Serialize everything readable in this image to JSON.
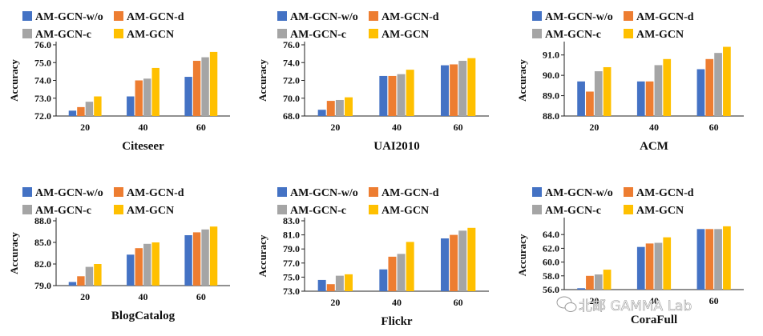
{
  "chart_data": [
    {
      "type": "bar",
      "title": "Citeseer",
      "ylabel": "Accuracy",
      "categories": [
        "20",
        "40",
        "60"
      ],
      "ylim": [
        72.0,
        76.0
      ],
      "yticks": [
        "72.0",
        "73.0",
        "74.0",
        "75.0",
        "76.0"
      ],
      "series": [
        {
          "name": "AM-GCN-w/o",
          "color": "#4472C4",
          "values": [
            72.3,
            73.1,
            74.2
          ]
        },
        {
          "name": "AM-GCN-d",
          "color": "#ED7D31",
          "values": [
            72.5,
            74.0,
            75.1
          ]
        },
        {
          "name": "AM-GCN-c",
          "color": "#A5A5A5",
          "values": [
            72.8,
            74.1,
            75.3
          ]
        },
        {
          "name": "AM-GCN",
          "color": "#FFC000",
          "values": [
            73.1,
            74.7,
            75.6
          ]
        }
      ]
    },
    {
      "type": "bar",
      "title": "UAI2010",
      "ylabel": "Accuracy",
      "categories": [
        "20",
        "40",
        "60"
      ],
      "ylim": [
        68.0,
        76.0
      ],
      "yticks": [
        "68.0",
        "70.0",
        "72.0",
        "74.0",
        "76.0"
      ],
      "series": [
        {
          "name": "AM-GCN-w/o",
          "color": "#4472C4",
          "values": [
            68.7,
            72.5,
            73.7
          ]
        },
        {
          "name": "AM-GCN-d",
          "color": "#ED7D31",
          "values": [
            69.7,
            72.5,
            73.8
          ]
        },
        {
          "name": "AM-GCN-c",
          "color": "#A5A5A5",
          "values": [
            69.8,
            72.7,
            74.2
          ]
        },
        {
          "name": "AM-GCN",
          "color": "#FFC000",
          "values": [
            70.1,
            73.2,
            74.5
          ]
        }
      ]
    },
    {
      "type": "bar",
      "title": "ACM",
      "ylabel": "Accuracy",
      "categories": [
        "20",
        "40",
        "60"
      ],
      "ylim": [
        88.0,
        91.5
      ],
      "yticks": [
        "88.0",
        "89.0",
        "90.0",
        "91.0"
      ],
      "series": [
        {
          "name": "AM-GCN-w/o",
          "color": "#4472C4",
          "values": [
            89.7,
            89.7,
            90.3
          ]
        },
        {
          "name": "AM-GCN-d",
          "color": "#ED7D31",
          "values": [
            89.2,
            89.7,
            90.8
          ]
        },
        {
          "name": "AM-GCN-c",
          "color": "#A5A5A5",
          "values": [
            90.2,
            90.5,
            91.1
          ]
        },
        {
          "name": "AM-GCN",
          "color": "#FFC000",
          "values": [
            90.4,
            90.8,
            91.4
          ]
        }
      ]
    },
    {
      "type": "bar",
      "title": "BlogCatalog",
      "ylabel": "Accuracy",
      "categories": [
        "20",
        "40",
        "60"
      ],
      "ylim": [
        79.0,
        88.0
      ],
      "yticks": [
        "79.0",
        "82.0",
        "85.0",
        "88.0"
      ],
      "series": [
        {
          "name": "AM-GCN-w/o",
          "color": "#4472C4",
          "values": [
            79.5,
            83.3,
            86.0
          ]
        },
        {
          "name": "AM-GCN-d",
          "color": "#ED7D31",
          "values": [
            80.3,
            84.2,
            86.4
          ]
        },
        {
          "name": "AM-GCN-c",
          "color": "#A5A5A5",
          "values": [
            81.6,
            84.8,
            86.8
          ]
        },
        {
          "name": "AM-GCN",
          "color": "#FFC000",
          "values": [
            82.0,
            85.0,
            87.2
          ]
        }
      ]
    },
    {
      "type": "bar",
      "title": "Flickr",
      "ylabel": "Accuracy",
      "categories": [
        "20",
        "40",
        "60"
      ],
      "ylim": [
        73.0,
        83.0
      ],
      "yticks": [
        "73.0",
        "75.0",
        "77.0",
        "79.0",
        "81.0",
        "83.0"
      ],
      "series": [
        {
          "name": "AM-GCN-w/o",
          "color": "#4472C4",
          "values": [
            74.6,
            76.1,
            80.5
          ]
        },
        {
          "name": "AM-GCN-d",
          "color": "#ED7D31",
          "values": [
            74.0,
            77.9,
            81.0
          ]
        },
        {
          "name": "AM-GCN-c",
          "color": "#A5A5A5",
          "values": [
            75.2,
            78.3,
            81.6
          ]
        },
        {
          "name": "AM-GCN",
          "color": "#FFC000",
          "values": [
            75.4,
            80.0,
            82.0
          ]
        }
      ]
    },
    {
      "type": "bar",
      "title": "CoraFull",
      "ylabel": "Accuracy",
      "categories": [
        "20",
        "40",
        "60"
      ],
      "ylim": [
        56.0,
        66.0
      ],
      "yticks": [
        "56.0",
        "58.0",
        "60.0",
        "62.0",
        "64.0"
      ],
      "series": [
        {
          "name": "AM-GCN-w/o",
          "color": "#4472C4",
          "values": [
            56.2,
            62.2,
            64.8
          ]
        },
        {
          "name": "AM-GCN-d",
          "color": "#ED7D31",
          "values": [
            58.0,
            62.7,
            64.8
          ]
        },
        {
          "name": "AM-GCN-c",
          "color": "#A5A5A5",
          "values": [
            58.2,
            62.8,
            64.8
          ]
        },
        {
          "name": "AM-GCN",
          "color": "#FFC000",
          "values": [
            58.9,
            63.6,
            65.2
          ]
        }
      ]
    }
  ],
  "watermark": "北邮 GAMMA Lab"
}
